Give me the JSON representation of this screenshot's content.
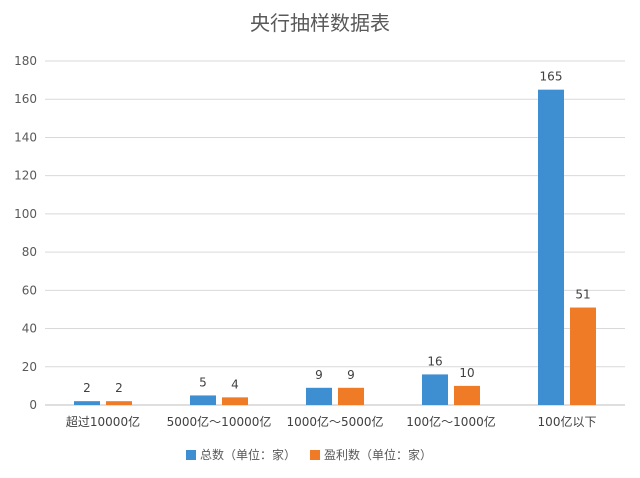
{
  "chart_data": {
    "type": "bar",
    "title": "央行抽样数据表",
    "xlabel": "",
    "ylabel": "",
    "categories": [
      "超过10000亿",
      "5000亿～10000亿",
      "1000亿～5000亿",
      "100亿～1000亿",
      "100亿以下"
    ],
    "series": [
      {
        "name": "总数（单位：家）",
        "values": [
          2,
          5,
          9,
          16,
          165
        ],
        "color": "#3d8fd1"
      },
      {
        "name": "盈利数（单位：家）",
        "values": [
          2,
          4,
          9,
          10,
          51
        ],
        "color": "#f07b26"
      }
    ],
    "ylim": [
      0,
      180
    ],
    "yticks": [
      0,
      20,
      40,
      60,
      80,
      100,
      120,
      140,
      160,
      180
    ],
    "grid": true,
    "legend": "bottom",
    "data_labels": true
  }
}
